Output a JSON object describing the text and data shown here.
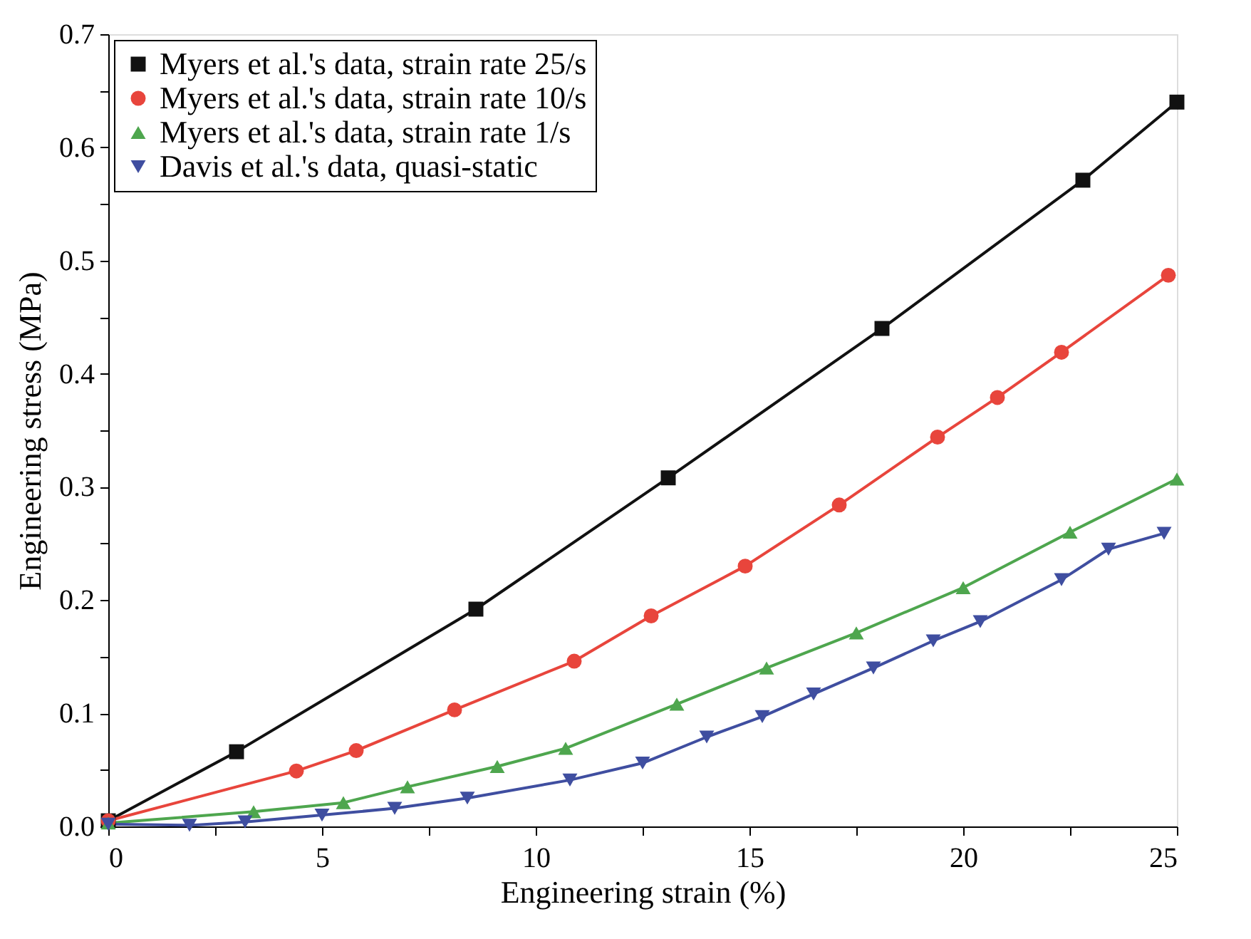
{
  "chart_data": {
    "type": "line",
    "xlabel": "Engineering strain (%)",
    "ylabel": "Engineering stress (MPa)",
    "xlim": [
      0,
      25
    ],
    "ylim": [
      0,
      0.7
    ],
    "xticks": [
      0,
      {
        "value": 2.5,
        "label": null
      },
      5,
      {
        "value": 7.5,
        "label": null
      },
      10,
      {
        "value": 12.5,
        "label": null
      },
      15,
      {
        "value": 17.5,
        "label": null
      },
      20,
      {
        "value": 22.5,
        "label": null
      },
      25
    ],
    "yticks": [
      {
        "value": 0,
        "label": "0.0"
      },
      {
        "value": 0.05,
        "label": null
      },
      0.1,
      {
        "value": 0.15,
        "label": null
      },
      0.2,
      {
        "value": 0.25,
        "label": null
      },
      0.3,
      {
        "value": 0.35,
        "label": null
      },
      0.4,
      {
        "value": 0.45,
        "label": null
      },
      0.5,
      {
        "value": 0.55,
        "label": null
      },
      0.6,
      {
        "value": 0.65,
        "label": null
      },
      0.7
    ],
    "grid": false,
    "legend": "top left",
    "line_style": "solid",
    "series": [
      {
        "name": "Myers et al.'s data, strain rate 25/s",
        "color": "#111111",
        "marker": "square",
        "x": [
          0,
          3.0,
          8.6,
          13.1,
          18.1,
          22.8,
          25.0
        ],
        "values": [
          0.005,
          0.066,
          0.192,
          0.308,
          0.44,
          0.571,
          0.64
        ]
      },
      {
        "name": "Myers et al.'s data, strain rate 10/s",
        "color": "#e8453c",
        "marker": "circle",
        "x": [
          0,
          4.4,
          5.8,
          8.1,
          10.9,
          12.7,
          14.9,
          17.1,
          19.4,
          20.8,
          22.3,
          24.8
        ],
        "values": [
          0.005,
          0.049,
          0.067,
          0.103,
          0.146,
          0.186,
          0.23,
          0.284,
          0.344,
          0.379,
          0.419,
          0.487
        ]
      },
      {
        "name": "Myers et al.'s data, strain rate 1/s",
        "color": "#4ea64e",
        "marker": "triangle",
        "x": [
          0,
          3.4,
          5.5,
          7.0,
          9.1,
          10.7,
          13.3,
          15.4,
          17.5,
          20.0,
          22.5,
          25.0
        ],
        "values": [
          0.003,
          0.013,
          0.021,
          0.035,
          0.053,
          0.069,
          0.108,
          0.14,
          0.171,
          0.211,
          0.26,
          0.307
        ]
      },
      {
        "name": "Davis et al.'s data, quasi-static",
        "color": "#3f4ea0",
        "marker": "triangle-down",
        "x": [
          0,
          1.9,
          3.2,
          5.0,
          6.7,
          8.4,
          10.8,
          12.5,
          14.0,
          15.3,
          16.5,
          17.9,
          19.3,
          20.4,
          22.3,
          23.4,
          24.7
        ],
        "values": [
          0.002,
          0.001,
          0.004,
          0.01,
          0.016,
          0.025,
          0.041,
          0.056,
          0.079,
          0.097,
          0.117,
          0.14,
          0.164,
          0.181,
          0.218,
          0.245,
          0.259
        ]
      }
    ]
  }
}
